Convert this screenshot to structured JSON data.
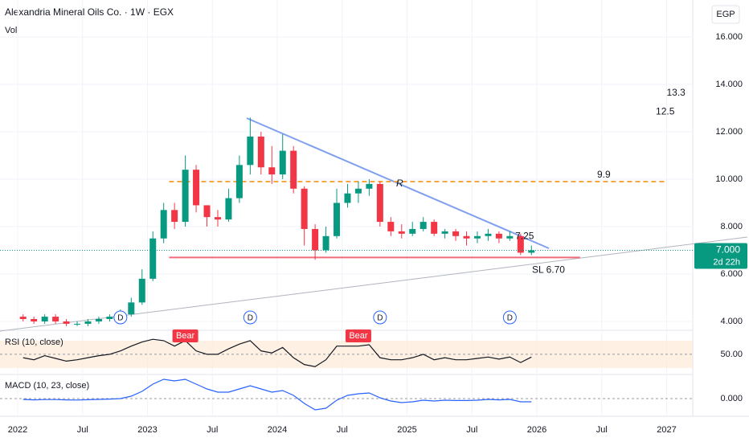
{
  "header": {
    "title": "Alexandria Mineral Oils Co. · 1W · EGX",
    "volume_label": "Vol",
    "currency": "EGP"
  },
  "chart_data": [
    {
      "type": "candlestick",
      "x": [
        "2022-01",
        "2022-02",
        "2022-03",
        "2022-04",
        "2022-05",
        "2022-06",
        "2022-07",
        "2022-08",
        "2022-09",
        "2022-10",
        "2022-11",
        "2022-12",
        "2023-01",
        "2023-02",
        "2023-03",
        "2023-04",
        "2023-05",
        "2023-06",
        "2023-07",
        "2023-08",
        "2023-09",
        "2023-10",
        "2023-11",
        "2023-12",
        "2024-01",
        "2024-02",
        "2024-03",
        "2024-04",
        "2024-05",
        "2024-06",
        "2024-07",
        "2024-08",
        "2024-09",
        "2024-10",
        "2024-11",
        "2024-12",
        "2025-01",
        "2025-02",
        "2025-03",
        "2025-04",
        "2025-05",
        "2025-06",
        "2025-07",
        "2025-08",
        "2025-09",
        "2025-10",
        "2025-11",
        "2025-12"
      ],
      "open": [
        4.2,
        4.1,
        4.0,
        4.2,
        4.0,
        3.9,
        3.9,
        4.0,
        4.1,
        4.2,
        4.3,
        4.8,
        5.8,
        7.5,
        8.7,
        8.2,
        10.4,
        8.9,
        8.4,
        8.3,
        9.2,
        10.6,
        11.8,
        10.5,
        10.2,
        11.2,
        9.6,
        7.9,
        7.0,
        7.6,
        9.0,
        9.4,
        9.6,
        9.8,
        8.2,
        7.8,
        7.7,
        7.9,
        8.2,
        7.7,
        7.8,
        7.6,
        7.5,
        7.6,
        7.7,
        7.5,
        7.6,
        6.9
      ],
      "high": [
        4.3,
        4.2,
        4.3,
        4.3,
        4.1,
        4.0,
        4.1,
        4.2,
        4.3,
        4.5,
        5.0,
        6.2,
        7.8,
        9.0,
        9.0,
        11.0,
        10.6,
        8.9,
        8.7,
        9.6,
        11.0,
        12.6,
        12.0,
        11.4,
        11.9,
        11.4,
        9.7,
        8.1,
        8.0,
        9.6,
        9.8,
        9.9,
        10.0,
        9.9,
        8.4,
        8.1,
        8.2,
        8.4,
        8.3,
        7.9,
        7.9,
        7.8,
        7.8,
        7.9,
        7.8,
        7.8,
        7.7,
        7.2
      ],
      "low": [
        4.0,
        3.9,
        3.9,
        3.9,
        3.8,
        3.8,
        3.8,
        3.9,
        4.0,
        4.1,
        4.2,
        4.7,
        5.7,
        7.3,
        7.9,
        8.0,
        8.6,
        8.0,
        8.0,
        8.2,
        9.0,
        10.2,
        10.2,
        9.8,
        10.0,
        9.4,
        7.2,
        6.6,
        6.9,
        7.5,
        8.8,
        9.0,
        9.3,
        8.0,
        7.6,
        7.5,
        7.6,
        7.8,
        7.6,
        7.5,
        7.4,
        7.2,
        7.3,
        7.4,
        7.3,
        7.4,
        6.8,
        6.8
      ],
      "close": [
        4.1,
        4.0,
        4.2,
        4.0,
        3.9,
        3.9,
        4.0,
        4.1,
        4.2,
        4.3,
        4.8,
        5.8,
        7.5,
        8.7,
        8.2,
        10.4,
        8.9,
        8.4,
        8.3,
        9.2,
        10.6,
        11.8,
        10.5,
        10.2,
        11.2,
        9.6,
        7.9,
        7.0,
        7.6,
        9.0,
        9.4,
        9.6,
        9.8,
        8.2,
        7.8,
        7.7,
        7.9,
        8.2,
        7.7,
        7.8,
        7.6,
        7.5,
        7.6,
        7.7,
        7.5,
        7.6,
        6.9,
        7.0
      ],
      "up_color": "#089981",
      "down_color": "#f23645",
      "ylim": [
        3.66,
        17.56
      ],
      "yticks": [
        {
          "value": 4,
          "label": "4.000"
        },
        {
          "value": 6,
          "label": "6.000"
        },
        {
          "value": 8,
          "label": "8.000"
        },
        {
          "value": 10,
          "label": "10.000"
        },
        {
          "value": 12,
          "label": "12.000"
        },
        {
          "value": 14,
          "label": "14.000"
        },
        {
          "value": 16,
          "label": "16.000"
        }
      ],
      "xticks": [
        {
          "value": "2022-01",
          "label": "2022"
        },
        {
          "value": "2022-07",
          "label": "Jul"
        },
        {
          "value": "2023-01",
          "label": "2023"
        },
        {
          "value": "2023-07",
          "label": "Jul"
        },
        {
          "value": "2024-01",
          "label": "2024"
        },
        {
          "value": "2024-07",
          "label": "Jul"
        },
        {
          "value": "2025-01",
          "label": "2025"
        },
        {
          "value": "2025-07",
          "label": "Jul"
        },
        {
          "value": "2026-01",
          "label": "2026"
        },
        {
          "value": "2026-07",
          "label": "Jul"
        },
        {
          "value": "2027-01",
          "label": "2027"
        }
      ],
      "last_price": {
        "value": 7,
        "label": "7.000"
      },
      "countdown": "2d 22h",
      "levels": [
        {
          "label": "9.9",
          "value": 9.9,
          "from": "2023-03",
          "to": "2027-01",
          "color": "#f5a742"
        },
        {
          "label": "SL 6.70",
          "value": 6.7,
          "from": "2023-03",
          "to": "2026-05",
          "color": "#f06c7a"
        }
      ],
      "targets": [
        {
          "label": "13.3",
          "value": 13.3,
          "x": "2027-01"
        },
        {
          "label": "12.5",
          "value": 12.5,
          "x": "2026-12"
        },
        {
          "label": "7.25",
          "value": 7.25,
          "x": "2025-11"
        }
      ],
      "marks": [
        {
          "label": "R",
          "x": "2024-12"
        }
      ],
      "events": [
        {
          "x": "2022-10",
          "label": "D"
        },
        {
          "x": "2023-10",
          "label": "D"
        },
        {
          "x": "2024-10",
          "label": "D"
        },
        {
          "x": "2025-10",
          "label": "D"
        }
      ]
    },
    {
      "type": "line",
      "title": "RSI (10, close)",
      "color": "#131722",
      "values": [
        45,
        42,
        48,
        44,
        40,
        42,
        45,
        48,
        50,
        55,
        62,
        68,
        72,
        70,
        62,
        70,
        55,
        50,
        50,
        58,
        65,
        70,
        55,
        52,
        60,
        45,
        35,
        32,
        42,
        62,
        62,
        62,
        64,
        45,
        42,
        42,
        45,
        50,
        42,
        45,
        42,
        42,
        44,
        46,
        43,
        46,
        38,
        46
      ],
      "ylim": [
        24,
        84
      ],
      "yticks": [
        {
          "value": 50,
          "label": "50.00"
        }
      ],
      "signals": [
        {
          "x": "2023-04",
          "label": "Bear"
        },
        {
          "x": "2024-08",
          "label": "Bear"
        }
      ]
    },
    {
      "type": "line",
      "title": "MACD (10, 23, close)",
      "color": "#2962ff",
      "values": [
        -0.05,
        -0.08,
        -0.06,
        -0.06,
        -0.08,
        -0.09,
        -0.07,
        -0.05,
        -0.03,
        0.0,
        0.15,
        0.45,
        0.9,
        1.2,
        1.1,
        1.2,
        0.9,
        0.6,
        0.4,
        0.4,
        0.6,
        0.8,
        0.6,
        0.4,
        0.5,
        0.2,
        -0.3,
        -0.7,
        -0.6,
        -0.1,
        0.2,
        0.3,
        0.35,
        0.05,
        -0.15,
        -0.25,
        -0.2,
        -0.1,
        -0.15,
        -0.1,
        -0.12,
        -0.12,
        -0.1,
        -0.05,
        -0.08,
        -0.05,
        -0.2,
        -0.2
      ],
      "ylim": [
        -1.0,
        1.5
      ],
      "yticks": [
        {
          "value": 0,
          "label": "0.000"
        }
      ]
    }
  ]
}
